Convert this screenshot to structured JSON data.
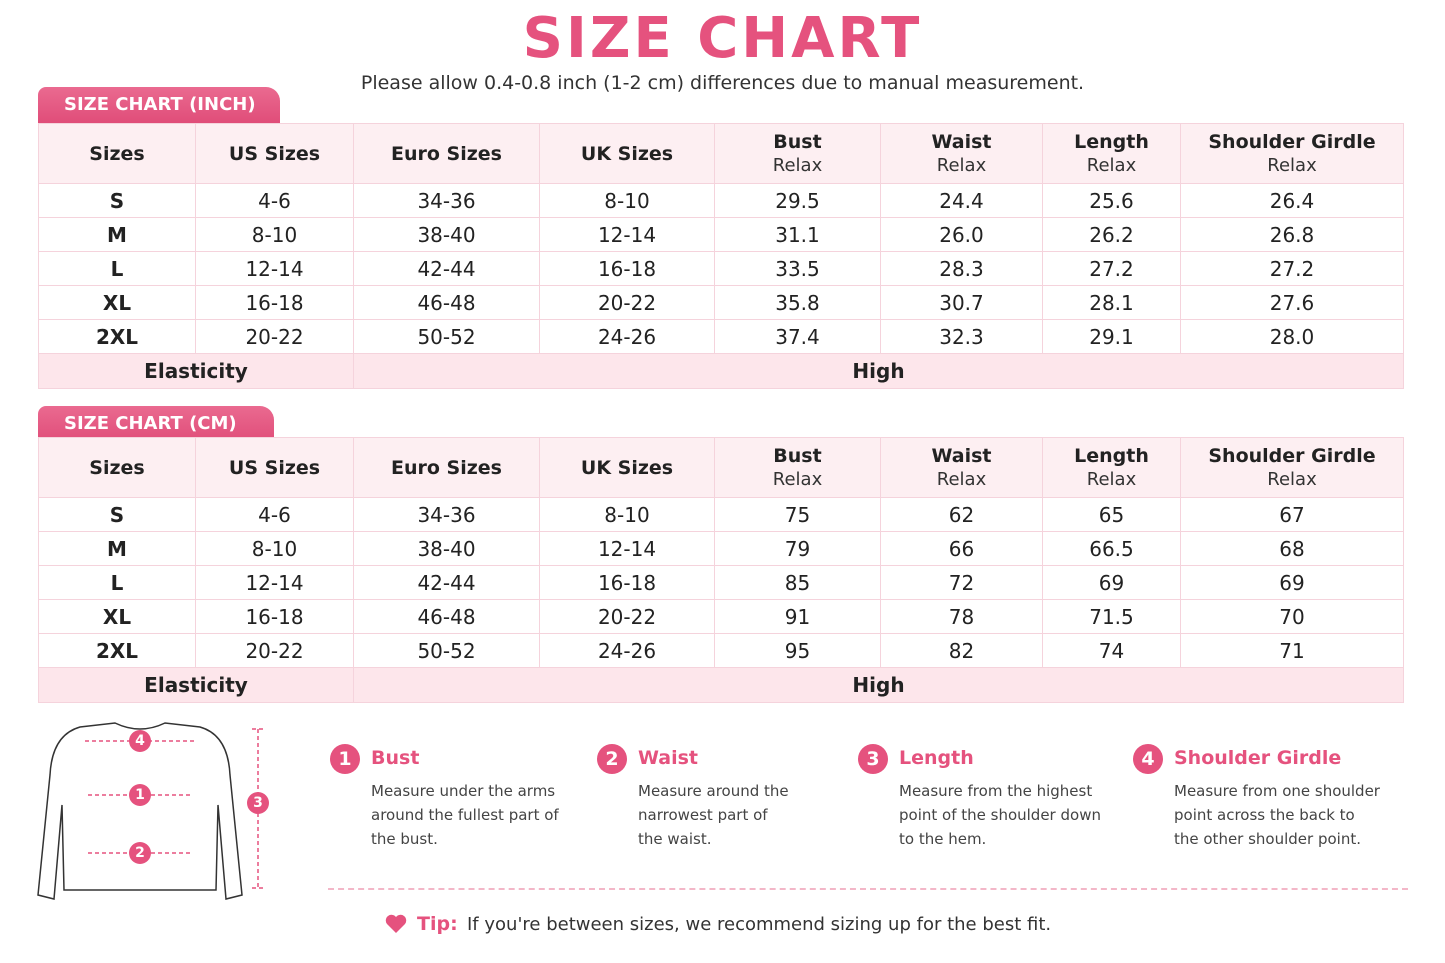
{
  "header": {
    "title": "SIZE CHART",
    "subtitle": "Please allow 0.4-0.8 inch (1-2 cm) differences due to manual measurement."
  },
  "tables": [
    {
      "tab": "SIZE CHART (INCH)",
      "columns": [
        {
          "name": "Sizes"
        },
        {
          "name": "US Sizes"
        },
        {
          "name": "Euro Sizes"
        },
        {
          "name": "UK Sizes"
        },
        {
          "name": "Bust",
          "sub": "Relax"
        },
        {
          "name": "Waist",
          "sub": "Relax"
        },
        {
          "name": "Length",
          "sub": "Relax"
        },
        {
          "name": "Shoulder Girdle",
          "sub": "Relax"
        }
      ],
      "rows": [
        [
          "S",
          "4-6",
          "34-36",
          "8-10",
          "29.5",
          "24.4",
          "25.6",
          "26.4"
        ],
        [
          "M",
          "8-10",
          "38-40",
          "12-14",
          "31.1",
          "26.0",
          "26.2",
          "26.8"
        ],
        [
          "L",
          "12-14",
          "42-44",
          "16-18",
          "33.5",
          "28.3",
          "27.2",
          "27.2"
        ],
        [
          "XL",
          "16-18",
          "46-48",
          "20-22",
          "35.8",
          "30.7",
          "28.1",
          "27.6"
        ],
        [
          "2XL",
          "20-22",
          "50-52",
          "24-26",
          "37.4",
          "32.3",
          "29.1",
          "28.0"
        ]
      ],
      "footer": {
        "label": "Elasticity",
        "value": "High"
      }
    },
    {
      "tab": "SIZE CHART (CM)",
      "columns": [
        {
          "name": "Sizes"
        },
        {
          "name": "US Sizes"
        },
        {
          "name": "Euro Sizes"
        },
        {
          "name": "UK Sizes"
        },
        {
          "name": "Bust",
          "sub": "Relax"
        },
        {
          "name": "Waist",
          "sub": "Relax"
        },
        {
          "name": "Length",
          "sub": "Relax"
        },
        {
          "name": "Shoulder Girdle",
          "sub": "Relax"
        }
      ],
      "rows": [
        [
          "S",
          "4-6",
          "34-36",
          "8-10",
          "75",
          "62",
          "65",
          "67"
        ],
        [
          "M",
          "8-10",
          "38-40",
          "12-14",
          "79",
          "66",
          "66.5",
          "68"
        ],
        [
          "L",
          "12-14",
          "42-44",
          "16-18",
          "85",
          "72",
          "69",
          "69"
        ],
        [
          "XL",
          "16-18",
          "46-48",
          "20-22",
          "91",
          "78",
          "71.5",
          "70"
        ],
        [
          "2XL",
          "20-22",
          "50-52",
          "24-26",
          "95",
          "82",
          "74",
          "71"
        ]
      ],
      "footer": {
        "label": "Elasticity",
        "value": "High"
      }
    }
  ],
  "measurements": [
    {
      "number": "1",
      "title": "Bust",
      "lines": [
        "Measure under the arms",
        "around the fullest part of",
        "the bust."
      ]
    },
    {
      "number": "2",
      "title": "Waist",
      "lines": [
        "Measure around the",
        "narrowest part of",
        "the waist."
      ]
    },
    {
      "number": "3",
      "title": "Length",
      "lines": [
        "Measure from the highest",
        "point of the shoulder down",
        "to the hem."
      ]
    },
    {
      "number": "4",
      "title": "Shoulder Girdle",
      "lines": [
        "Measure from one shoulder",
        "point across the back to",
        "the other shoulder point."
      ]
    }
  ],
  "tip": {
    "label": "Tip:",
    "text": "If you're between sizes, we recommend sizing up for the best fit."
  }
}
